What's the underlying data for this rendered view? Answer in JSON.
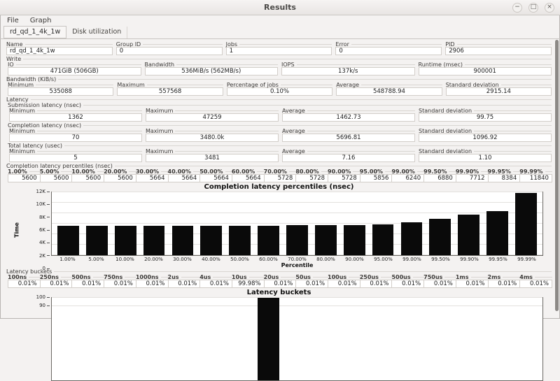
{
  "window": {
    "title": "Results",
    "controls": [
      {
        "name": "minimize",
        "glyph": "−"
      },
      {
        "name": "maximize",
        "glyph": "□"
      },
      {
        "name": "close",
        "glyph": "×"
      }
    ]
  },
  "menu": [
    "File",
    "Graph"
  ],
  "tabs": [
    {
      "label": "rd_qd_1_4k_1w",
      "active": true
    },
    {
      "label": "Disk utilization",
      "active": false
    }
  ],
  "job_fields": [
    {
      "label": "Name",
      "value": "rd_qd_1_4k_1w"
    },
    {
      "label": "Group ID",
      "value": "0"
    },
    {
      "label": "Jobs",
      "value": "1"
    },
    {
      "label": "Error",
      "value": "0"
    },
    {
      "label": "PID",
      "value": "2906"
    }
  ],
  "write": {
    "legend": "Write",
    "fields": [
      {
        "label": "IO",
        "value": "471GiB (506GB)"
      },
      {
        "label": "Bandwidth",
        "value": "536MiB/s (562MB/s)"
      },
      {
        "label": "IOPS",
        "value": "137k/s"
      },
      {
        "label": "Runtime (msec)",
        "value": "900001"
      }
    ]
  },
  "bandwidth": {
    "legend": "Bandwidth (KiB/s)",
    "fields": [
      {
        "label": "Minimum",
        "value": "535088"
      },
      {
        "label": "Maximum",
        "value": "557568"
      },
      {
        "label": "Percentage of jobs",
        "value": "0.10%"
      },
      {
        "label": "Average",
        "value": "548788.94"
      },
      {
        "label": "Standard deviation",
        "value": "2915.14"
      }
    ]
  },
  "latency": {
    "legend": "Latency",
    "groups": [
      {
        "legend": "Submission latency (nsec)",
        "fields": [
          {
            "label": "Minimum",
            "value": "1362"
          },
          {
            "label": "Maximum",
            "value": "47259"
          },
          {
            "label": "Average",
            "value": "1462.73"
          },
          {
            "label": "Standard deviation",
            "value": "99.75"
          }
        ]
      },
      {
        "legend": "Completion latency (nsec)",
        "fields": [
          {
            "label": "Minimum",
            "value": "70"
          },
          {
            "label": "Maximum",
            "value": "3480.0k"
          },
          {
            "label": "Average",
            "value": "5696.81"
          },
          {
            "label": "Standard deviation",
            "value": "1096.92"
          }
        ]
      },
      {
        "legend": "Total latency (usec)",
        "fields": [
          {
            "label": "Minimum",
            "value": "5"
          },
          {
            "label": "Maximum",
            "value": "3481"
          },
          {
            "label": "Average",
            "value": "7.16"
          },
          {
            "label": "Standard deviation",
            "value": "1.10"
          }
        ]
      }
    ]
  },
  "percentiles": {
    "legend": "Completion latency percentiles (nsec)",
    "columns": [
      {
        "label": "1.00%",
        "value": "5600"
      },
      {
        "label": "5.00%",
        "value": "5600"
      },
      {
        "label": "10.00%",
        "value": "5600"
      },
      {
        "label": "20.00%",
        "value": "5600"
      },
      {
        "label": "30.00%",
        "value": "5664"
      },
      {
        "label": "40.00%",
        "value": "5664"
      },
      {
        "label": "50.00%",
        "value": "5664"
      },
      {
        "label": "60.00%",
        "value": "5664"
      },
      {
        "label": "70.00%",
        "value": "5728"
      },
      {
        "label": "80.00%",
        "value": "5728"
      },
      {
        "label": "90.00%",
        "value": "5728"
      },
      {
        "label": "95.00%",
        "value": "5856"
      },
      {
        "label": "99.00%",
        "value": "6240"
      },
      {
        "label": "99.50%",
        "value": "6880"
      },
      {
        "label": "99.90%",
        "value": "7712"
      },
      {
        "label": "99.95%",
        "value": "8384"
      },
      {
        "label": "99.99%",
        "value": "11840"
      }
    ]
  },
  "buckets": {
    "legend": "Latency buckets",
    "columns": [
      {
        "label": "100ns",
        "value": "0.01%"
      },
      {
        "label": "250ns",
        "value": "0.01%"
      },
      {
        "label": "500ns",
        "value": "0.01%"
      },
      {
        "label": "750ns",
        "value": "0.01%"
      },
      {
        "label": "1000ns",
        "value": "0.01%"
      },
      {
        "label": "2us",
        "value": "0.01%"
      },
      {
        "label": "4us",
        "value": "0.01%"
      },
      {
        "label": "10us",
        "value": "99.98%"
      },
      {
        "label": "20us",
        "value": "0.01%"
      },
      {
        "label": "50us",
        "value": "0.01%"
      },
      {
        "label": "100us",
        "value": "0.01%"
      },
      {
        "label": "250us",
        "value": "0.01%"
      },
      {
        "label": "500us",
        "value": "0.01%"
      },
      {
        "label": "750us",
        "value": "0.01%"
      },
      {
        "label": "1ms",
        "value": "0.01%"
      },
      {
        "label": "2ms",
        "value": "0.01%"
      },
      {
        "label": "4ms",
        "value": "0.01%"
      }
    ]
  },
  "chart_data": [
    {
      "type": "bar",
      "title": "Completion latency percentiles (nsec)",
      "xlabel": "Percentile",
      "ylabel": "Time",
      "categories": [
        "1.00%",
        "5.00%",
        "10.00%",
        "20.00%",
        "30.00%",
        "40.00%",
        "50.00%",
        "60.00%",
        "70.00%",
        "80.00%",
        "90.00%",
        "95.00%",
        "99.00%",
        "99.50%",
        "99.90%",
        "99.95%",
        "99.99%"
      ],
      "values": [
        5600,
        5600,
        5600,
        5600,
        5664,
        5664,
        5664,
        5664,
        5728,
        5728,
        5728,
        5856,
        6240,
        6880,
        7712,
        8384,
        11840
      ],
      "ylim": [
        0,
        12000
      ],
      "yticks": [
        {
          "label": "0",
          "value": 0
        },
        {
          "label": "2K",
          "value": 2000
        },
        {
          "label": "4K",
          "value": 4000
        },
        {
          "label": "6K",
          "value": 6000
        },
        {
          "label": "8K",
          "value": 8000
        },
        {
          "label": "10K",
          "value": 10000
        },
        {
          "label": "12K",
          "value": 12000
        }
      ],
      "bar_color": "#0a0a0a",
      "grid": true,
      "legend_position": "none"
    },
    {
      "type": "bar",
      "title": "Latency buckets",
      "xlabel": "",
      "ylabel": "",
      "categories": [
        "100ns",
        "250ns",
        "500ns",
        "750ns",
        "1000ns",
        "2us",
        "4us",
        "10us",
        "20us",
        "50us",
        "100us",
        "250us",
        "500us",
        "750us",
        "1ms",
        "2ms",
        "4ms"
      ],
      "values": [
        0.01,
        0.01,
        0.01,
        0.01,
        0.01,
        0.01,
        0.01,
        99.98,
        0.01,
        0.01,
        0.01,
        0.01,
        0.01,
        0.01,
        0.01,
        0.01,
        0.01
      ],
      "ylim": [
        0,
        100
      ],
      "yticks": [
        {
          "label": "100",
          "value": 100
        },
        {
          "label": "90",
          "value": 90
        }
      ],
      "bar_color": "#0a0a0a",
      "grid": true,
      "legend_position": "none"
    }
  ]
}
